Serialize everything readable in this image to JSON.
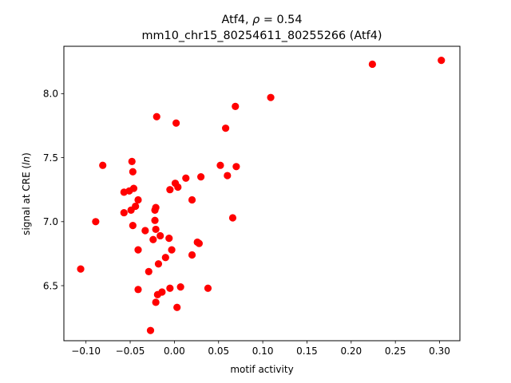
{
  "chart_data": {
    "type": "scatter",
    "title": "Atf4, ρ = 0.54",
    "title_parts": {
      "gene": "Atf4, ",
      "rho_symbol": "ρ",
      "rho_eq": " = 0.54"
    },
    "subtitle": "mm10_chr15_80254611_80255266 (Atf4)",
    "xlabel": "motif activity",
    "ylabel_parts": {
      "prefix": "signal at CRE (",
      "italic": "ln",
      "suffix": ")"
    },
    "xlim": [
      -0.125,
      0.323
    ],
    "ylim": [
      6.07,
      8.37
    ],
    "xticks": [
      -0.1,
      -0.05,
      0.0,
      0.05,
      0.1,
      0.15,
      0.2,
      0.25,
      0.3
    ],
    "xtick_labels": [
      "−0.10",
      "−0.05",
      "0.00",
      "0.05",
      "0.10",
      "0.15",
      "0.20",
      "0.25",
      "0.30"
    ],
    "yticks": [
      6.5,
      7.0,
      7.5,
      8.0
    ],
    "ytick_labels": [
      "6.5",
      "7.0",
      "7.5",
      "8.0"
    ],
    "grid": false,
    "legend": "none",
    "marker_color": "#ff0000",
    "points": [
      [
        -0.106,
        6.63
      ],
      [
        -0.089,
        7.0
      ],
      [
        -0.081,
        7.44
      ],
      [
        -0.057,
        7.23
      ],
      [
        -0.057,
        7.07
      ],
      [
        -0.051,
        7.24
      ],
      [
        -0.048,
        7.47
      ],
      [
        -0.047,
        7.39
      ],
      [
        -0.046,
        7.26
      ],
      [
        -0.049,
        7.09
      ],
      [
        -0.047,
        6.97
      ],
      [
        -0.044,
        7.12
      ],
      [
        -0.041,
        7.17
      ],
      [
        -0.041,
        6.78
      ],
      [
        -0.041,
        6.47
      ],
      [
        -0.033,
        6.93
      ],
      [
        -0.029,
        6.61
      ],
      [
        -0.027,
        6.15
      ],
      [
        -0.024,
        6.86
      ],
      [
        -0.022,
        7.09
      ],
      [
        -0.021,
        7.11
      ],
      [
        -0.022,
        7.01
      ],
      [
        -0.021,
        6.94
      ],
      [
        -0.02,
        7.82
      ],
      [
        -0.021,
        6.37
      ],
      [
        -0.019,
        6.43
      ],
      [
        -0.018,
        6.67
      ],
      [
        -0.016,
        6.89
      ],
      [
        -0.014,
        6.45
      ],
      [
        -0.01,
        6.72
      ],
      [
        -0.005,
        7.25
      ],
      [
        -0.006,
        6.87
      ],
      [
        -0.005,
        6.48
      ],
      [
        -0.003,
        6.78
      ],
      [
        0.001,
        7.3
      ],
      [
        0.002,
        7.77
      ],
      [
        0.003,
        6.33
      ],
      [
        0.004,
        7.27
      ],
      [
        0.007,
        6.49
      ],
      [
        0.013,
        7.34
      ],
      [
        0.02,
        6.74
      ],
      [
        0.02,
        7.17
      ],
      [
        0.026,
        6.84
      ],
      [
        0.028,
        6.83
      ],
      [
        0.03,
        7.35
      ],
      [
        0.038,
        6.48
      ],
      [
        0.052,
        7.44
      ],
      [
        0.058,
        7.73
      ],
      [
        0.06,
        7.36
      ],
      [
        0.066,
        7.03
      ],
      [
        0.069,
        7.9
      ],
      [
        0.07,
        7.43
      ],
      [
        0.109,
        7.97
      ],
      [
        0.224,
        8.23
      ],
      [
        0.302,
        8.26
      ]
    ]
  }
}
